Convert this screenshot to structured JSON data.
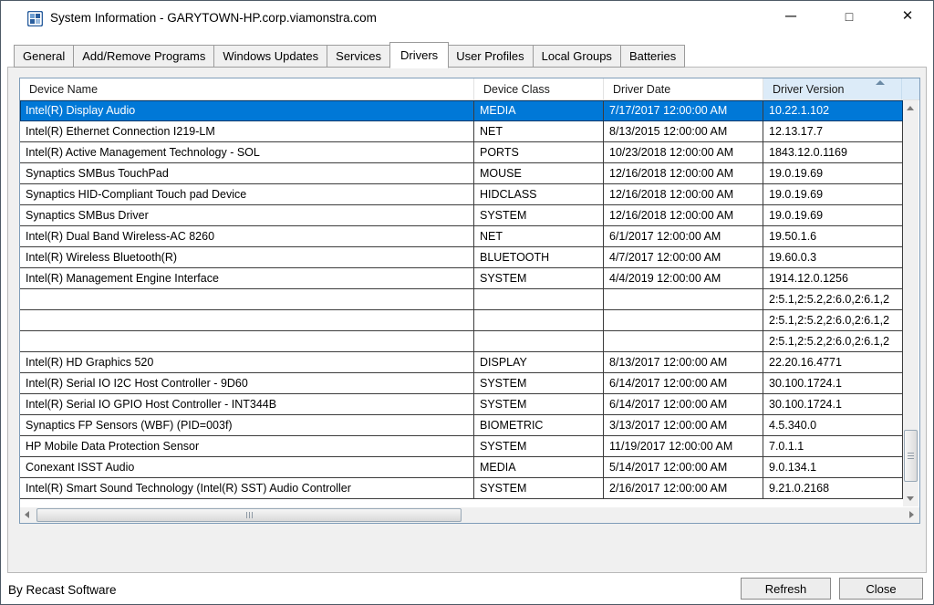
{
  "window": {
    "title": "System Information - GARYTOWN-HP.corp.viamonstra.com",
    "controls": [
      {
        "id": "minimize",
        "glyph": "─"
      },
      {
        "id": "maximize",
        "glyph": "□"
      },
      {
        "id": "close",
        "glyph": "✕"
      }
    ]
  },
  "tabs": [
    {
      "id": "general",
      "label": "General",
      "active": false
    },
    {
      "id": "add-remove-programs",
      "label": "Add/Remove Programs",
      "active": false
    },
    {
      "id": "windows-updates",
      "label": "Windows Updates",
      "active": false
    },
    {
      "id": "services",
      "label": "Services",
      "active": false
    },
    {
      "id": "drivers",
      "label": "Drivers",
      "active": true
    },
    {
      "id": "user-profiles",
      "label": "User Profiles",
      "active": false
    },
    {
      "id": "local-groups",
      "label": "Local Groups",
      "active": false
    },
    {
      "id": "batteries",
      "label": "Batteries",
      "active": false
    }
  ],
  "drivers_table": {
    "columns": [
      "Device Name",
      "Device Class",
      "Driver Date",
      "Driver Version"
    ],
    "sort": {
      "column": "Driver Version",
      "direction": "ascending"
    },
    "selected_index": 0,
    "rows": [
      {
        "device_name": "Intel(R) Display Audio",
        "device_class": "MEDIA",
        "driver_date": "7/17/2017 12:00:00 AM",
        "driver_version": "10.22.1.102"
      },
      {
        "device_name": "Intel(R) Ethernet Connection I219-LM",
        "device_class": "NET",
        "driver_date": "8/13/2015 12:00:00 AM",
        "driver_version": "12.13.17.7"
      },
      {
        "device_name": "Intel(R) Active Management Technology - SOL",
        "device_class": "PORTS",
        "driver_date": "10/23/2018 12:00:00 AM",
        "driver_version": "1843.12.0.1169"
      },
      {
        "device_name": "Synaptics SMBus TouchPad",
        "device_class": "MOUSE",
        "driver_date": "12/16/2018 12:00:00 AM",
        "driver_version": "19.0.19.69"
      },
      {
        "device_name": "Synaptics HID-Compliant Touch pad Device",
        "device_class": "HIDCLASS",
        "driver_date": "12/16/2018 12:00:00 AM",
        "driver_version": "19.0.19.69"
      },
      {
        "device_name": "Synaptics SMBus Driver",
        "device_class": "SYSTEM",
        "driver_date": "12/16/2018 12:00:00 AM",
        "driver_version": "19.0.19.69"
      },
      {
        "device_name": "Intel(R) Dual Band Wireless-AC 8260",
        "device_class": "NET",
        "driver_date": "6/1/2017 12:00:00 AM",
        "driver_version": "19.50.1.6"
      },
      {
        "device_name": "Intel(R) Wireless Bluetooth(R)",
        "device_class": "BLUETOOTH",
        "driver_date": "4/7/2017 12:00:00 AM",
        "driver_version": "19.60.0.3"
      },
      {
        "device_name": "Intel(R) Management Engine Interface",
        "device_class": "SYSTEM",
        "driver_date": "4/4/2019 12:00:00 AM",
        "driver_version": "1914.12.0.1256"
      },
      {
        "device_name": "",
        "device_class": "",
        "driver_date": "",
        "driver_version": "2:5.1,2:5.2,2:6.0,2:6.1,2"
      },
      {
        "device_name": "",
        "device_class": "",
        "driver_date": "",
        "driver_version": "2:5.1,2:5.2,2:6.0,2:6.1,2"
      },
      {
        "device_name": "",
        "device_class": "",
        "driver_date": "",
        "driver_version": "2:5.1,2:5.2,2:6.0,2:6.1,2"
      },
      {
        "device_name": "Intel(R) HD Graphics 520",
        "device_class": "DISPLAY",
        "driver_date": "8/13/2017 12:00:00 AM",
        "driver_version": "22.20.16.4771"
      },
      {
        "device_name": "Intel(R) Serial IO I2C Host Controller - 9D60",
        "device_class": "SYSTEM",
        "driver_date": "6/14/2017 12:00:00 AM",
        "driver_version": "30.100.1724.1"
      },
      {
        "device_name": "Intel(R) Serial IO GPIO Host Controller - INT344B",
        "device_class": "SYSTEM",
        "driver_date": "6/14/2017 12:00:00 AM",
        "driver_version": "30.100.1724.1"
      },
      {
        "device_name": "Synaptics FP Sensors (WBF) (PID=003f)",
        "device_class": "BIOMETRIC",
        "driver_date": "3/13/2017 12:00:00 AM",
        "driver_version": "4.5.340.0"
      },
      {
        "device_name": "HP Mobile Data Protection Sensor",
        "device_class": "SYSTEM",
        "driver_date": "11/19/2017 12:00:00 AM",
        "driver_version": "7.0.1.1"
      },
      {
        "device_name": "Conexant ISST Audio",
        "device_class": "MEDIA",
        "driver_date": "5/14/2017 12:00:00 AM",
        "driver_version": "9.0.134.1"
      },
      {
        "device_name": "Intel(R) Smart Sound Technology (Intel(R) SST) Audio Controller",
        "device_class": "SYSTEM",
        "driver_date": "2/16/2017 12:00:00 AM",
        "driver_version": "9.21.0.2168"
      }
    ]
  },
  "footer": {
    "credit": "By Recast Software",
    "refresh_label": "Refresh",
    "close_label": "Close"
  },
  "colors": {
    "selection_bg": "#0078d7",
    "selection_text": "#ffffff",
    "sorted_header_bg": "#dcebf8",
    "gridline": "#3c3c3c",
    "panel_bg": "#f0f0f0"
  }
}
